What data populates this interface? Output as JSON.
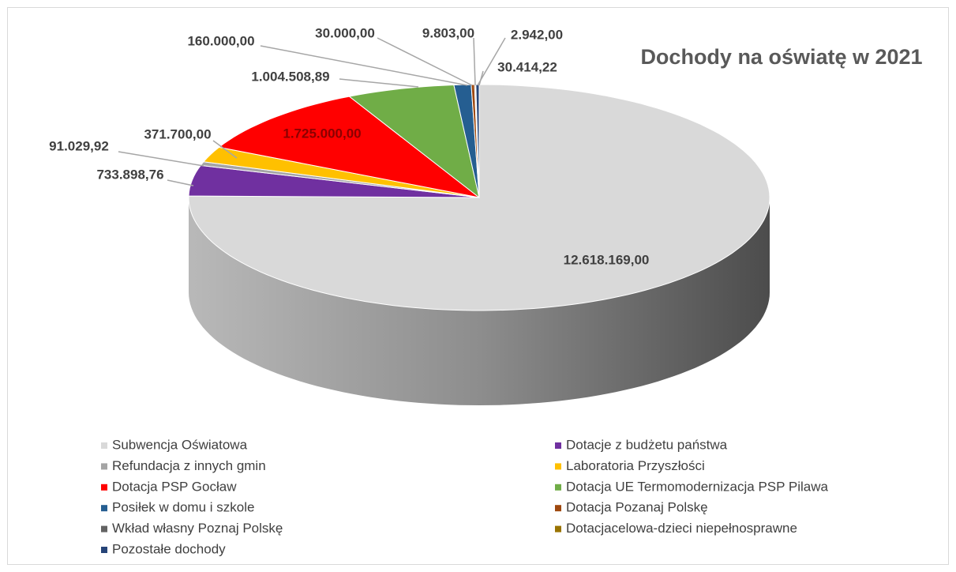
{
  "chart_data": {
    "type": "pie",
    "title": "Dochody na oświatę w 2021",
    "categories": [
      "Subwencja Oświatowa",
      "Dotacje z budżetu państwa",
      "Refundacja z innych gmin",
      "Laboratoria Przyszłości",
      "Dotacja PSP Gocław",
      "Dotacja UE Termomodernizacja PSP Pilawa",
      "Posiłek w domu i szkole",
      "Dotacja Pozanaj Polskę",
      "Wkład własny Poznaj Polskę",
      "Dotacjacelowa-dzieci niepełnosprawne",
      "Pozostałe dochody"
    ],
    "values": [
      12618169.0,
      733898.76,
      91029.92,
      371700.0,
      1725000.0,
      1004508.89,
      160000.0,
      30000.0,
      9803.0,
      2942.0,
      30414.22
    ],
    "value_labels": [
      "12.618.169,00",
      "733.898,76",
      "91.029,92",
      "371.700,00",
      "1.725.000,00",
      "1.004.508,89",
      "160.000,00",
      "30.000,00",
      "9.803,00",
      "2.942,00",
      "30.414,22"
    ],
    "colors": [
      "#d9d9d9",
      "#7030a0",
      "#a5a5a5",
      "#ffc000",
      "#ff0000",
      "#70ad47",
      "#255e91",
      "#9e480e",
      "#636363",
      "#997300",
      "#264478"
    ],
    "legend": "bottom"
  }
}
